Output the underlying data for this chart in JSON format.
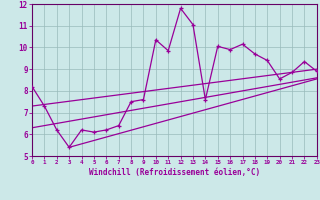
{
  "xlabel": "Windchill (Refroidissement éolien,°C)",
  "bg_color": "#cce8e8",
  "line_color": "#990099",
  "spine_color": "#660066",
  "grid_color": "#99bbbb",
  "xmin": 0,
  "xmax": 23,
  "ymin": 5,
  "ymax": 12,
  "yticks": [
    5,
    6,
    7,
    8,
    9,
    10,
    11,
    12
  ],
  "xticks": [
    0,
    1,
    2,
    3,
    4,
    5,
    6,
    7,
    8,
    9,
    10,
    11,
    12,
    13,
    14,
    15,
    16,
    17,
    18,
    19,
    20,
    21,
    22,
    23
  ],
  "zigzag_x": [
    0,
    1,
    2,
    3,
    4,
    5,
    6,
    7,
    8,
    9,
    10,
    11,
    12,
    13,
    14,
    15,
    16,
    17,
    18,
    19,
    20,
    21,
    22,
    23
  ],
  "zigzag_y": [
    8.2,
    7.3,
    6.2,
    5.4,
    6.2,
    6.1,
    6.2,
    6.4,
    7.5,
    7.6,
    10.35,
    9.85,
    11.8,
    11.05,
    7.6,
    10.05,
    9.9,
    10.15,
    9.7,
    9.4,
    8.55,
    8.85,
    9.35,
    8.9
  ],
  "line1_x": [
    0,
    23
  ],
  "line1_y": [
    7.3,
    9.0
  ],
  "line2_x": [
    0,
    23
  ],
  "line2_y": [
    6.3,
    8.6
  ],
  "line3_x": [
    3,
    23
  ],
  "line3_y": [
    5.4,
    8.55
  ]
}
